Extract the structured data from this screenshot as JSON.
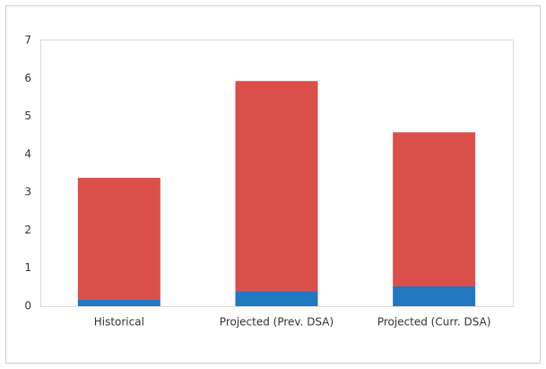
{
  "chart_data": {
    "type": "stacked-bar",
    "categories": [
      "Historical",
      "Projected (Prev. DSA)",
      "Projected (Curr. DSA)"
    ],
    "series": [
      {
        "color": "#2178c0",
        "values": [
          0.18,
          0.4,
          0.52
        ]
      },
      {
        "color": "#db4f4a",
        "values": [
          3.2,
          5.53,
          4.06
        ]
      }
    ],
    "ylim": [
      0,
      7
    ],
    "yticks": [
      0,
      1,
      2,
      3,
      4,
      5,
      6,
      7
    ],
    "grid": false
  }
}
